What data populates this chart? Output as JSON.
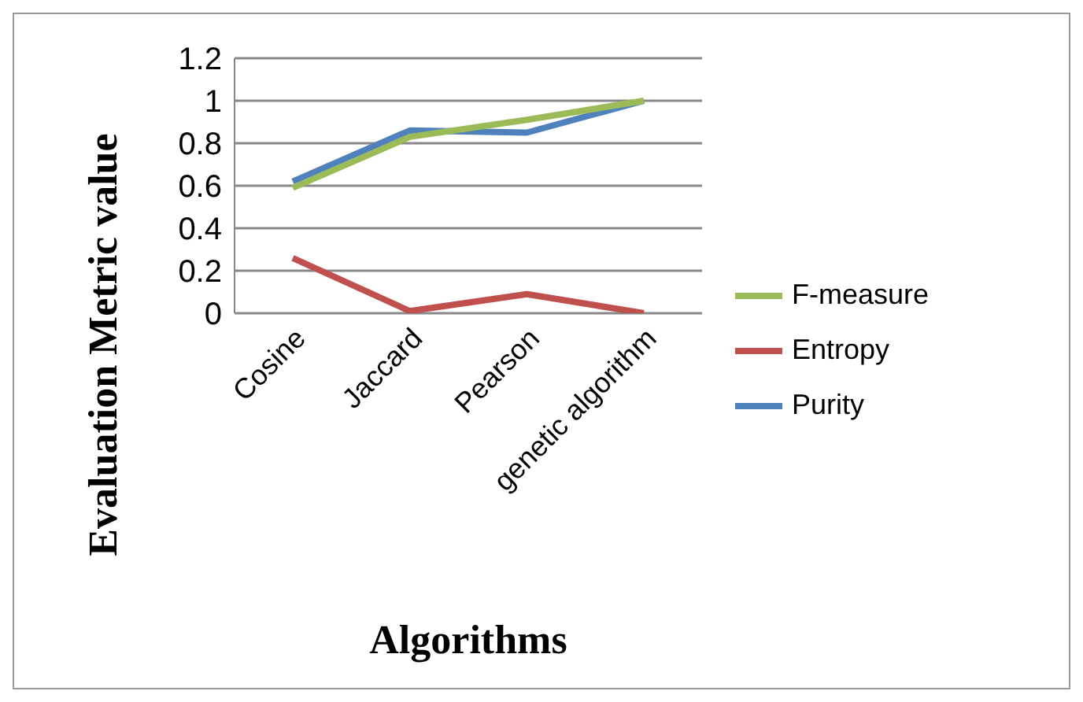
{
  "chart_data": {
    "type": "line",
    "xlabel": "Algorithms",
    "ylabel": "Evaluation Metric value",
    "categories": [
      "Cosine",
      "Jaccard",
      "Pearson",
      "genetic algorithm"
    ],
    "series": [
      {
        "name": "F-measure",
        "color": "#9bbb59",
        "values": [
          0.59,
          0.83,
          0.91,
          1.0
        ]
      },
      {
        "name": "Entropy",
        "color": "#c0504d",
        "values": [
          0.26,
          0.01,
          0.09,
          0.0
        ]
      },
      {
        "name": "Purity",
        "color": "#4f81bd",
        "values": [
          0.62,
          0.86,
          0.85,
          1.0
        ]
      }
    ],
    "ylim": [
      0,
      1.2
    ],
    "yticks": [
      0,
      0.2,
      0.4,
      0.6,
      0.8,
      1,
      1.2
    ],
    "grid": "y",
    "legend": "right",
    "marker": "none",
    "line_style": "solid"
  }
}
